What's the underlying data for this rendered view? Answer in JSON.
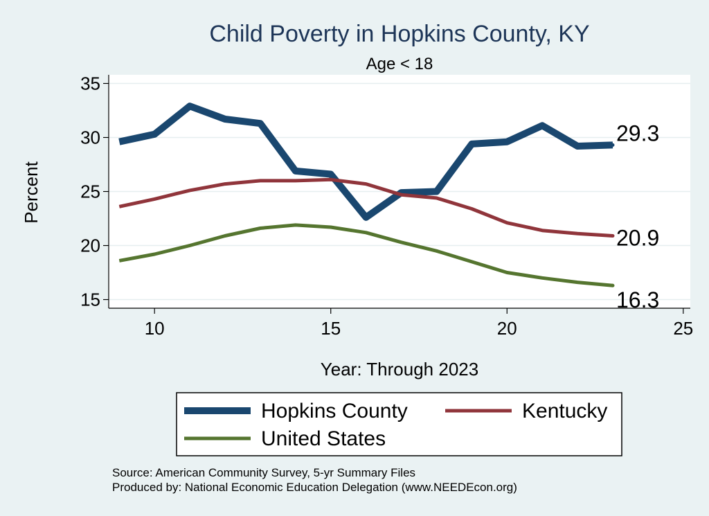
{
  "chart_data": {
    "type": "line",
    "title": "Child Poverty in Hopkins County, KY",
    "subtitle": "Age < 18",
    "xlabel": "Year: Through 2023",
    "ylabel": "Percent",
    "xlim": [
      8.7,
      25.2
    ],
    "ylim": [
      14.2,
      35.8
    ],
    "xticks": [
      10,
      15,
      20,
      25
    ],
    "yticks": [
      15,
      20,
      25,
      30,
      35
    ],
    "grid": true,
    "legend_position": "bottom",
    "x": [
      9,
      10,
      11,
      12,
      13,
      14,
      15,
      16,
      17,
      18,
      19,
      20,
      21,
      22,
      23
    ],
    "series": [
      {
        "name": "Hopkins County",
        "color": "#1a476f",
        "values": [
          29.6,
          30.3,
          32.9,
          31.7,
          31.3,
          26.9,
          26.6,
          22.6,
          24.9,
          25.0,
          29.4,
          29.6,
          31.1,
          29.2,
          29.3
        ],
        "end_label": "29.3"
      },
      {
        "name": "Kentucky",
        "color": "#90353b",
        "values": [
          23.6,
          24.3,
          25.1,
          25.7,
          26.0,
          26.0,
          26.1,
          25.7,
          24.7,
          24.4,
          23.4,
          22.1,
          21.4,
          21.1,
          20.9
        ],
        "end_label": "20.9"
      },
      {
        "name": "United States",
        "color": "#55752f",
        "values": [
          18.6,
          19.2,
          20.0,
          20.9,
          21.6,
          21.9,
          21.7,
          21.2,
          20.3,
          19.5,
          18.5,
          17.5,
          17.0,
          16.6,
          16.3
        ],
        "end_label": "16.3"
      }
    ]
  },
  "notes": {
    "source": "Source: American Community Survey, 5-yr Summary Files",
    "produced_by": "Produced by: National Economic Education Delegation (www.NEEDEcon.org)"
  }
}
